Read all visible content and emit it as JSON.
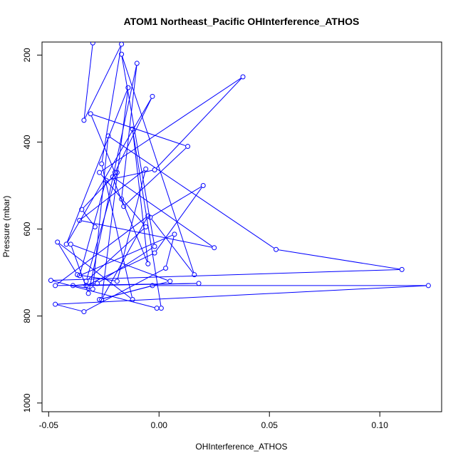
{
  "chart_data": {
    "type": "line",
    "title": "ATOM1 Northeast_Pacific OHInterference_ATHOS",
    "xlabel": "OHInterference_ATHOS",
    "ylabel": "Pressure (mbar)",
    "xlim": [
      -0.053,
      0.128
    ],
    "ylim": [
      1020,
      170
    ],
    "y_reversed": true,
    "x_ticks": [
      -0.05,
      0.0,
      0.05,
      0.1
    ],
    "x_tick_labels": [
      "-0.05",
      "0.00",
      "0.05",
      "0.10"
    ],
    "y_ticks": [
      200,
      400,
      600,
      800,
      1000
    ],
    "y_tick_labels": [
      "200",
      "400",
      "600",
      "800",
      "1000"
    ],
    "series_color": "#0000ff",
    "grid": false,
    "legend": "none",
    "series": [
      {
        "x": [
          -0.03,
          -0.034,
          -0.017,
          -0.026,
          -0.012,
          -0.046,
          -0.037,
          -0.019,
          -0.006,
          -0.036,
          0.025,
          -0.021,
          -0.016,
          0.013,
          -0.031,
          -0.02,
          -0.003,
          -0.042,
          -0.014,
          -0.026,
          -0.005,
          -0.047,
          0.018,
          -0.033,
          -0.002,
          0.02,
          -0.004,
          0.016,
          -0.017,
          -0.002,
          -0.028,
          -0.039,
          -0.03,
          -0.023,
          0.053,
          0.11,
          -0.049,
          -0.001,
          0.001,
          -0.012,
          -0.005,
          -0.017,
          -0.01,
          -0.032,
          -0.04,
          0.005,
          -0.027,
          -0.003,
          0.122,
          -0.047,
          -0.034,
          0.003,
          0.007,
          -0.036,
          -0.024,
          -0.002,
          0.038,
          -0.027,
          -0.006,
          -0.033,
          -0.019,
          -0.035,
          -0.029
        ],
        "y": [
          172,
          350,
          175,
          450,
          762,
          630,
          705,
          720,
          462,
          580,
          643,
          480,
          548,
          410,
          335,
          470,
          295,
          635,
          275,
          762,
          570,
          730,
          725,
          730,
          655,
          500,
          573,
          705,
          198,
          640,
          725,
          730,
          738,
          386,
          647,
          693,
          718,
          782,
          782,
          370,
          680,
          531,
          219,
          748,
          635,
          720,
          762,
          730,
          730,
          773,
          790,
          690,
          612,
          707,
          488,
          464,
          250,
          470,
          595,
          720,
          470,
          555,
          595
        ]
      }
    ]
  }
}
